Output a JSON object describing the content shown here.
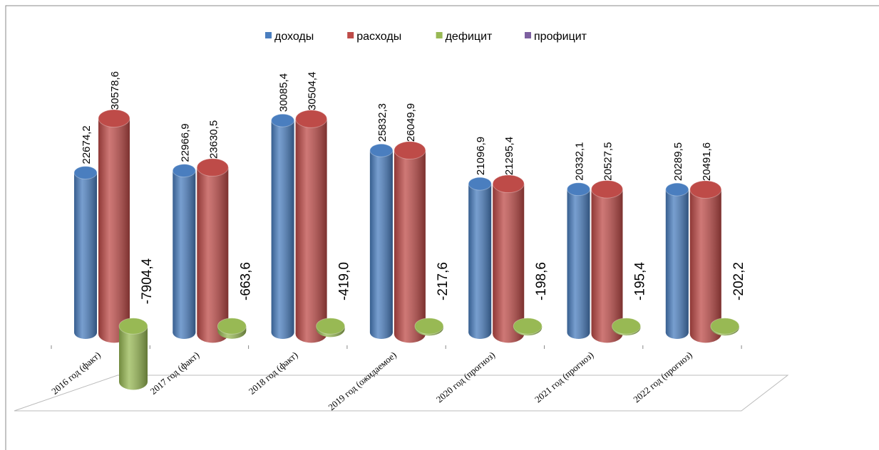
{
  "chart_data": {
    "type": "bar3d",
    "categories": [
      "2016 год (факт)",
      "2017 год (факт)",
      "2018 год (факт)",
      "2019 год (ожидаемое)",
      "2020 год (прогноз)",
      "2021 год (прогноз)",
      "2022 год (прогноз)"
    ],
    "series": [
      {
        "name": "доходы",
        "color": "#4a7ebf",
        "values": [
          22674.2,
          22966.9,
          30085.4,
          25832.3,
          21096.9,
          20332.1,
          20289.5
        ],
        "value_labels": [
          "22674,2",
          "22966,9",
          "30085,4",
          "25832,3",
          "21096,9",
          "20332,1",
          "20289,5"
        ]
      },
      {
        "name": "расходы",
        "color": "#be4b48",
        "values": [
          30578.6,
          23630.5,
          30504.4,
          26049.9,
          21295.4,
          20527.5,
          20491.6
        ],
        "value_labels": [
          "30578,6",
          "23630,5",
          "30504,4",
          "26049,9",
          "21295,4",
          "20527,5",
          "20491,6"
        ]
      },
      {
        "name": "дефицит",
        "color": "#98b954",
        "values": [
          -7904.4,
          -663.6,
          -419.0,
          -217.6,
          -198.6,
          -195.4,
          -202.2
        ],
        "value_labels": [
          "-7904,4",
          "-663,6",
          "-419,0",
          "-217,6",
          "-198,6",
          "-195,4",
          "-202,2"
        ]
      },
      {
        "name": "профицит",
        "color": "#7d60a0",
        "values": [
          null,
          null,
          null,
          null,
          null,
          null,
          null
        ]
      }
    ]
  }
}
